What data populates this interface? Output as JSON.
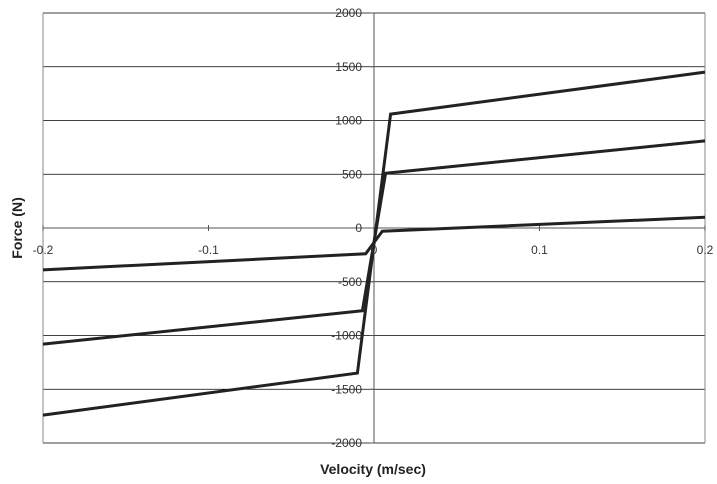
{
  "chart_data": {
    "type": "line",
    "title": "",
    "xlabel": "Velocity (m/sec)",
    "ylabel": "Force (N)",
    "xlim": [
      -0.2,
      0.2
    ],
    "ylim": [
      -2000,
      2000
    ],
    "x_ticks": [
      -0.2,
      -0.1,
      0,
      0.1,
      0.2
    ],
    "x_tick_labels": [
      "-0.2",
      "-0.1",
      "0",
      "0.1",
      "0.2"
    ],
    "y_ticks": [
      -2000,
      -1500,
      -1000,
      -500,
      0,
      500,
      1000,
      1500,
      2000
    ],
    "y_tick_labels": [
      "-2000",
      "-1500",
      "-1000",
      "-500",
      "0",
      "500",
      "1000",
      "1500",
      "2000"
    ],
    "grid": "horizontal",
    "legend": "none",
    "line_color": "#222222",
    "grid_color": "#000000",
    "series": [
      {
        "x": [
          -0.2,
          -0.005,
          0.005,
          0.2
        ],
        "y": [
          -390,
          -240,
          -30,
          100
        ]
      },
      {
        "x": [
          -0.2,
          -0.007,
          0.007,
          0.2
        ],
        "y": [
          -1080,
          -770,
          510,
          810
        ]
      },
      {
        "x": [
          -0.2,
          -0.01,
          0.01,
          0.2
        ],
        "y": [
          -1740,
          -1350,
          1060,
          1450
        ]
      }
    ]
  }
}
